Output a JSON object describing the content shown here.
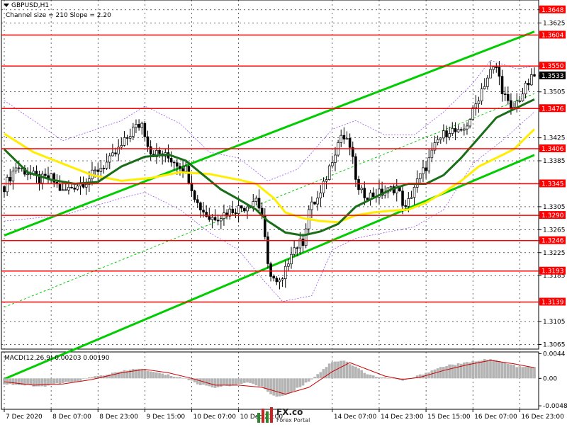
{
  "header": {
    "symbol": "GBPUSD,H1",
    "channel_info": "Channel size = 210 Slope = 2.20"
  },
  "macd": {
    "label": "MACD(12,26,9) 0.00203 0.00190",
    "ticks": [
      "0.0044",
      "0.00",
      "-0.00488"
    ],
    "tick_values": [
      0.0044,
      0.0,
      -0.00488
    ],
    "range": [
      -0.0055,
      0.0047
    ]
  },
  "logo": {
    "brand": "FX.co",
    "sub": "Forex Portal"
  },
  "colors": {
    "level_line": "#ff0000",
    "level_label_bg": "#ff0000",
    "current_price_bg": "#000000",
    "channel": "#00cc00",
    "ma_fast": "#1a6e1a",
    "ma_slow": "#ffee00",
    "bollinger": "#9955ee",
    "candle": "#000000",
    "macd_hist": "#b4b4b4",
    "macd_signal": "#cc0000"
  },
  "chart_data": {
    "type": "candlestick",
    "symbol": "GBPUSD",
    "timeframe": "H1",
    "ylim": [
      1.3057,
      1.3665
    ],
    "grid": true,
    "price_ticks": [
      "1.3648",
      "1.3625",
      "1.3550",
      "1.3533",
      "1.3505",
      "1.3476",
      "1.3425",
      "1.3406",
      "1.3385",
      "1.3345",
      "1.3305",
      "1.3290",
      "1.3265",
      "1.3246",
      "1.3225",
      "1.3193",
      "1.3185",
      "1.3139",
      "1.3105",
      "1.3065"
    ],
    "price_tick_values": [
      1.3648,
      1.3625,
      1.355,
      1.3533,
      1.3505,
      1.3476,
      1.3425,
      1.3406,
      1.3385,
      1.3345,
      1.3305,
      1.329,
      1.3265,
      1.3246,
      1.3225,
      1.3193,
      1.3185,
      1.3139,
      1.3105,
      1.3065
    ],
    "levels": [
      1.3604,
      1.355,
      1.3476,
      1.3406,
      1.3345,
      1.329,
      1.3246,
      1.3193,
      1.3139
    ],
    "current_price": 1.3533,
    "x_labels": [
      "7 Dec 2020",
      "8 Dec 07:00",
      "8 Dec 23:00",
      "9 Dec 15:00",
      "10 Dec 07:00",
      "10 Dec 23:00",
      "14 Dec 07:00",
      "14 Dec 23:00",
      "15 Dec 15:00",
      "16 Dec 07:00",
      "16 Dec 23:00"
    ],
    "x_label_index": [
      0,
      16,
      32,
      48,
      64,
      80,
      112,
      128,
      144,
      160,
      176
    ],
    "candle_count": 182,
    "close_path": [
      [
        0,
        1.334
      ],
      [
        4,
        1.3375
      ],
      [
        8,
        1.3365
      ],
      [
        12,
        1.3352
      ],
      [
        16,
        1.3355
      ],
      [
        20,
        1.333
      ],
      [
        24,
        1.3342
      ],
      [
        28,
        1.335
      ],
      [
        32,
        1.337
      ],
      [
        36,
        1.3385
      ],
      [
        40,
        1.341
      ],
      [
        44,
        1.344
      ],
      [
        47,
        1.345
      ],
      [
        50,
        1.34
      ],
      [
        54,
        1.3395
      ],
      [
        58,
        1.3385
      ],
      [
        62,
        1.337
      ],
      [
        66,
        1.331
      ],
      [
        70,
        1.3285
      ],
      [
        74,
        1.329
      ],
      [
        78,
        1.33
      ],
      [
        82,
        1.3305
      ],
      [
        86,
        1.332
      ],
      [
        88,
        1.329
      ],
      [
        90,
        1.32
      ],
      [
        93,
        1.317
      ],
      [
        95,
        1.3175
      ],
      [
        98,
        1.323
      ],
      [
        102,
        1.3245
      ],
      [
        104,
        1.33
      ],
      [
        108,
        1.3325
      ],
      [
        112,
        1.339
      ],
      [
        115,
        1.343
      ],
      [
        118,
        1.341
      ],
      [
        121,
        1.333
      ],
      [
        125,
        1.3325
      ],
      [
        130,
        1.333
      ],
      [
        134,
        1.334
      ],
      [
        137,
        1.33
      ],
      [
        140,
        1.334
      ],
      [
        144,
        1.3375
      ],
      [
        148,
        1.342
      ],
      [
        152,
        1.344
      ],
      [
        156,
        1.343
      ],
      [
        160,
        1.347
      ],
      [
        163,
        1.351
      ],
      [
        166,
        1.354
      ],
      [
        168,
        1.3548
      ],
      [
        170,
        1.351
      ],
      [
        173,
        1.347
      ],
      [
        176,
        1.3495
      ],
      [
        179,
        1.352
      ],
      [
        181,
        1.3533
      ]
    ],
    "ma_fast_path": [
      [
        0,
        1.3405
      ],
      [
        8,
        1.3365
      ],
      [
        16,
        1.3352
      ],
      [
        24,
        1.3345
      ],
      [
        32,
        1.3348
      ],
      [
        40,
        1.3375
      ],
      [
        48,
        1.3392
      ],
      [
        56,
        1.3396
      ],
      [
        62,
        1.3385
      ],
      [
        68,
        1.336
      ],
      [
        74,
        1.3335
      ],
      [
        80,
        1.3318
      ],
      [
        86,
        1.33
      ],
      [
        90,
        1.328
      ],
      [
        96,
        1.326
      ],
      [
        102,
        1.3255
      ],
      [
        108,
        1.3262
      ],
      [
        114,
        1.3275
      ],
      [
        120,
        1.3305
      ],
      [
        126,
        1.332
      ],
      [
        132,
        1.3335
      ],
      [
        138,
        1.3345
      ],
      [
        144,
        1.3345
      ],
      [
        150,
        1.336
      ],
      [
        156,
        1.339
      ],
      [
        162,
        1.3425
      ],
      [
        168,
        1.346
      ],
      [
        174,
        1.3475
      ],
      [
        181,
        1.3492
      ]
    ],
    "ma_slow_path": [
      [
        0,
        1.3432
      ],
      [
        10,
        1.34
      ],
      [
        20,
        1.338
      ],
      [
        30,
        1.336
      ],
      [
        40,
        1.335
      ],
      [
        50,
        1.3355
      ],
      [
        60,
        1.3365
      ],
      [
        70,
        1.3362
      ],
      [
        80,
        1.3352
      ],
      [
        86,
        1.3345
      ],
      [
        92,
        1.332
      ],
      [
        96,
        1.3295
      ],
      [
        102,
        1.3285
      ],
      [
        108,
        1.328
      ],
      [
        114,
        1.3278
      ],
      [
        120,
        1.329
      ],
      [
        126,
        1.3295
      ],
      [
        132,
        1.3298
      ],
      [
        138,
        1.33
      ],
      [
        144,
        1.3312
      ],
      [
        150,
        1.333
      ],
      [
        156,
        1.335
      ],
      [
        162,
        1.3375
      ],
      [
        168,
        1.339
      ],
      [
        174,
        1.3405
      ],
      [
        181,
        1.344
      ]
    ],
    "bollinger_upper_path": [
      [
        0,
        1.349
      ],
      [
        20,
        1.342
      ],
      [
        40,
        1.3455
      ],
      [
        48,
        1.348
      ],
      [
        60,
        1.345
      ],
      [
        70,
        1.34
      ],
      [
        80,
        1.339
      ],
      [
        90,
        1.335
      ],
      [
        100,
        1.337
      ],
      [
        112,
        1.344
      ],
      [
        120,
        1.3455
      ],
      [
        130,
        1.343
      ],
      [
        140,
        1.343
      ],
      [
        150,
        1.347
      ],
      [
        160,
        1.352
      ],
      [
        166,
        1.356
      ],
      [
        175,
        1.3545
      ],
      [
        181,
        1.355
      ]
    ],
    "bollinger_lower_path": [
      [
        0,
        1.328
      ],
      [
        20,
        1.329
      ],
      [
        40,
        1.332
      ],
      [
        48,
        1.333
      ],
      [
        60,
        1.33
      ],
      [
        70,
        1.326
      ],
      [
        80,
        1.323
      ],
      [
        88,
        1.318
      ],
      [
        95,
        1.314
      ],
      [
        105,
        1.315
      ],
      [
        112,
        1.323
      ],
      [
        120,
        1.325
      ],
      [
        130,
        1.326
      ],
      [
        140,
        1.327
      ],
      [
        150,
        1.33
      ],
      [
        160,
        1.338
      ],
      [
        170,
        1.342
      ],
      [
        181,
        1.347
      ]
    ],
    "channel": {
      "upper": [
        [
          0,
          1.3255
        ],
        [
          181,
          1.361
        ]
      ],
      "lower": [
        [
          0,
          1.3005
        ],
        [
          181,
          1.3395
        ]
      ],
      "mid": [
        [
          0,
          1.313
        ],
        [
          181,
          1.3502
        ]
      ]
    },
    "macd_histogram": [
      [
        0,
        -0.001
      ],
      [
        6,
        -0.0012
      ],
      [
        12,
        -0.0015
      ],
      [
        18,
        -0.001
      ],
      [
        24,
        -0.0006
      ],
      [
        30,
        0.0002
      ],
      [
        36,
        0.0008
      ],
      [
        40,
        0.0012
      ],
      [
        46,
        0.0018
      ],
      [
        50,
        0.0012
      ],
      [
        56,
        0.0006
      ],
      [
        62,
        0.0
      ],
      [
        66,
        -0.001
      ],
      [
        72,
        -0.0016
      ],
      [
        78,
        -0.0012
      ],
      [
        84,
        -0.0008
      ],
      [
        88,
        -0.0015
      ],
      [
        92,
        -0.0032
      ],
      [
        96,
        -0.003
      ],
      [
        100,
        -0.0018
      ],
      [
        104,
        -0.0005
      ],
      [
        108,
        0.0012
      ],
      [
        112,
        0.003
      ],
      [
        116,
        0.0032
      ],
      [
        120,
        0.002
      ],
      [
        124,
        0.0008
      ],
      [
        128,
        0.0002
      ],
      [
        132,
        0.0
      ],
      [
        136,
        -0.0004
      ],
      [
        140,
        0.0002
      ],
      [
        144,
        0.001
      ],
      [
        148,
        0.0018
      ],
      [
        152,
        0.0024
      ],
      [
        156,
        0.0026
      ],
      [
        160,
        0.003
      ],
      [
        164,
        0.0034
      ],
      [
        168,
        0.0032
      ],
      [
        172,
        0.0026
      ],
      [
        176,
        0.002
      ],
      [
        181,
        0.002
      ]
    ],
    "macd_signal_path": [
      [
        0,
        -0.0006
      ],
      [
        10,
        -0.0012
      ],
      [
        20,
        -0.001
      ],
      [
        30,
        -0.0002
      ],
      [
        40,
        0.001
      ],
      [
        48,
        0.0016
      ],
      [
        56,
        0.001
      ],
      [
        64,
        0.0
      ],
      [
        72,
        -0.0012
      ],
      [
        80,
        -0.0012
      ],
      [
        88,
        -0.0016
      ],
      [
        96,
        -0.0028
      ],
      [
        104,
        -0.0016
      ],
      [
        112,
        0.0012
      ],
      [
        118,
        0.0028
      ],
      [
        124,
        0.0016
      ],
      [
        130,
        0.0004
      ],
      [
        136,
        -0.0002
      ],
      [
        142,
        0.0002
      ],
      [
        150,
        0.0014
      ],
      [
        158,
        0.0024
      ],
      [
        166,
        0.0032
      ],
      [
        174,
        0.0026
      ],
      [
        181,
        0.0019
      ]
    ]
  }
}
